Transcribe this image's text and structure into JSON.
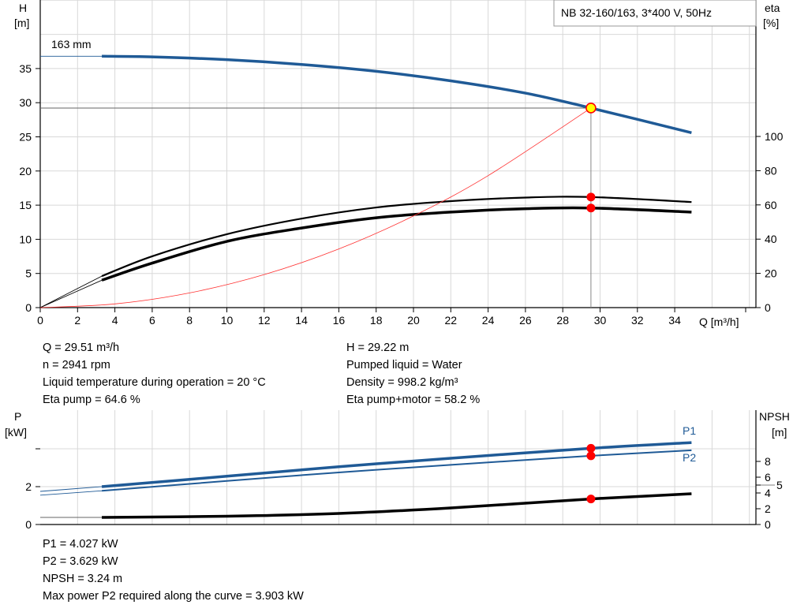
{
  "chart_data": [
    {
      "type": "line",
      "title": "NB 32-160/163, 3*400 V, 50Hz",
      "xlabel": "Q [m³/h]",
      "ylabel": "H\n[m]",
      "ylabel_lines": [
        "H",
        "[m]"
      ],
      "y2label_lines": [
        "eta",
        "[%]"
      ],
      "xlim": [
        0,
        38
      ],
      "ylim": [
        0,
        45
      ],
      "y2lim": [
        0,
        100
      ],
      "x_ticks": [
        0,
        2,
        4,
        6,
        8,
        10,
        12,
        14,
        16,
        18,
        20,
        22,
        24,
        26,
        28,
        30,
        32,
        34
      ],
      "y_ticks": [
        0,
        5,
        10,
        15,
        20,
        25,
        30,
        35
      ],
      "y2_ticks": [
        0,
        20,
        40,
        60,
        80,
        100
      ],
      "grid": true,
      "annotation": "163 mm",
      "series": [
        {
          "id": "head",
          "axis": "H",
          "color": "#1f5a96",
          "width": 3.5,
          "x": [
            3.3,
            6,
            10,
            14,
            18,
            22,
            26,
            29.51,
            34.9
          ],
          "y": [
            36.8,
            36.7,
            36.3,
            35.6,
            34.6,
            33.2,
            31.4,
            29.22,
            25.6
          ],
          "extension": {
            "x": [
              0,
              3.3
            ],
            "y": [
              36.8,
              36.8
            ]
          }
        },
        {
          "id": "eta-pump",
          "axis": "eta",
          "color": "#000000",
          "width": 2.2,
          "x": [
            3.3,
            6,
            10,
            14,
            18,
            22,
            26,
            29.51,
            34.9
          ],
          "y": [
            18.4,
            30,
            42.9,
            52,
            58.5,
            62.2,
            64.3,
            64.6,
            61.7
          ],
          "extension": {
            "x": [
              0,
              3.3
            ],
            "y": [
              0,
              18.4
            ]
          }
        },
        {
          "id": "eta-pump-motor",
          "axis": "eta",
          "color": "#000000",
          "width": 3.5,
          "x": [
            3.3,
            6,
            10,
            14,
            18,
            22,
            26,
            29.51,
            34.9
          ],
          "y": [
            16,
            26,
            38.7,
            46.5,
            52.5,
            55.8,
            57.8,
            58.2,
            55.8
          ],
          "extension": {
            "x": [
              0,
              3.3
            ],
            "y": [
              0,
              16
            ]
          }
        },
        {
          "id": "system-curve",
          "axis": "H",
          "color": "#ff3030",
          "width": 0.8,
          "x": [
            0,
            4,
            8,
            12,
            16,
            20,
            24,
            29.51
          ],
          "y": [
            0,
            0.54,
            2.15,
            4.83,
            8.59,
            13.42,
            19.32,
            29.22
          ]
        }
      ],
      "duty_point": {
        "Q": 29.51,
        "H": 29.22,
        "eta_pump": 64.6,
        "eta_pump_motor": 58.2,
        "marker_color": "#ffff00",
        "marker_edge": "#ff0000"
      }
    },
    {
      "type": "line",
      "ylabel_lines": [
        "P",
        "[kW]"
      ],
      "y2label_lines": [
        "NPSH",
        "[m]"
      ],
      "xlim": [
        0,
        38
      ],
      "ylim": [
        0,
        4.6
      ],
      "y2lim": [
        0,
        12
      ],
      "y_ticks": [
        0,
        2
      ],
      "y_ticks_unlabeled": [
        4
      ],
      "y2_ticks": [
        0,
        2,
        4,
        5,
        6,
        8
      ],
      "grid": true,
      "series": [
        {
          "id": "P1",
          "name": "P1",
          "axis": "P",
          "color": "#1f5a96",
          "width": 3.5,
          "x": [
            3.3,
            10,
            16,
            22,
            29.51,
            34.9
          ],
          "y": [
            2.0,
            2.55,
            3.05,
            3.5,
            4.027,
            4.33
          ],
          "extension": {
            "x": [
              0,
              3.3
            ],
            "y": [
              1.75,
              2.0
            ]
          }
        },
        {
          "id": "P2",
          "name": "P2",
          "axis": "P",
          "color": "#1f5a96",
          "width": 2,
          "x": [
            3.3,
            10,
            16,
            22,
            29.51,
            34.9
          ],
          "y": [
            1.78,
            2.3,
            2.75,
            3.15,
            3.629,
            3.92
          ],
          "extension": {
            "x": [
              0,
              3.3
            ],
            "y": [
              1.55,
              1.78
            ]
          }
        },
        {
          "id": "NPSH",
          "axis": "NPSH",
          "color": "#000000",
          "width": 3.5,
          "x": [
            3.3,
            10,
            16,
            22,
            29.51,
            34.9
          ],
          "y": [
            0.9,
            1.05,
            1.4,
            2.1,
            3.24,
            3.9
          ],
          "extension": {
            "x": [
              0,
              3.3
            ],
            "y": [
              0.9,
              0.9
            ]
          }
        }
      ],
      "duty_point": {
        "Q": 29.51,
        "P1": 4.027,
        "P2": 3.629,
        "NPSH": 3.24,
        "marker_color": "#ff0000"
      }
    }
  ],
  "info_top": {
    "left": [
      "Q = 29.51 m³/h",
      "n = 2941 rpm",
      "Liquid temperature during operation = 20 °C",
      "Eta pump = 64.6 %"
    ],
    "right": [
      "H = 29.22 m",
      "Pumped liquid = Water",
      "Density = 998.2 kg/m³",
      "Eta pump+motor = 58.2 %"
    ]
  },
  "info_bottom": [
    "P1 = 4.027 kW",
    "P2 = 3.629 kW",
    "NPSH = 3.24 m",
    "Max power P2 required along the curve = 3.903 kW"
  ]
}
